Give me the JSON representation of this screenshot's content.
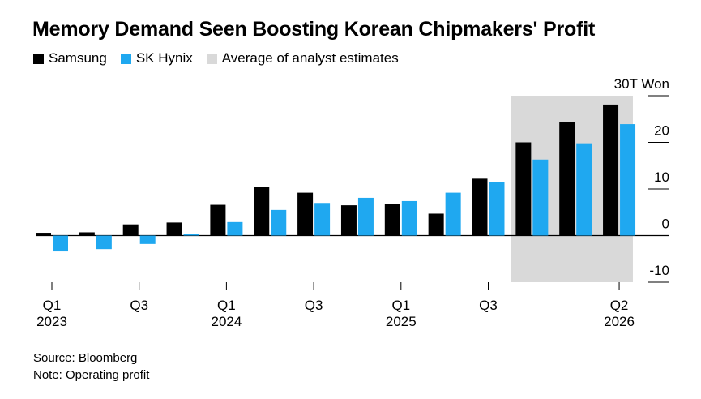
{
  "title": "Memory Demand Seen Boosting Korean Chipmakers' Profit",
  "legend": [
    {
      "label": "Samsung",
      "color": "#000000"
    },
    {
      "label": "SK Hynix",
      "color": "#1fa8f0"
    },
    {
      "label": "Average of analyst estimates",
      "color": "#d9d9d9"
    }
  ],
  "footer": {
    "source": "Source: Bloomberg",
    "note": "Note: Operating profit"
  },
  "chart_data": {
    "type": "bar",
    "title": "Memory Demand Seen Boosting Korean Chipmakers' Profit",
    "ylabel": "T Won",
    "ylim": [
      -10,
      30
    ],
    "yticks": [
      30,
      20,
      10,
      0,
      -10
    ],
    "ytick_labels": [
      "30T Won",
      "20",
      "10",
      "0",
      "-10"
    ],
    "categories": [
      "Q1 2023",
      "Q2 2023",
      "Q3 2023",
      "Q4 2023",
      "Q1 2024",
      "Q2 2024",
      "Q3 2024",
      "Q4 2024",
      "Q1 2025",
      "Q2 2025",
      "Q3 2025",
      "Q4 2025",
      "Q1 2026",
      "Q2 2026"
    ],
    "xtick_labels": [
      {
        "index": 0,
        "quarter": "Q1",
        "year": "2023"
      },
      {
        "index": 2,
        "quarter": "Q3",
        "year": ""
      },
      {
        "index": 4,
        "quarter": "Q1",
        "year": "2024"
      },
      {
        "index": 6,
        "quarter": "Q3",
        "year": ""
      },
      {
        "index": 8,
        "quarter": "Q1",
        "year": "2025"
      },
      {
        "index": 10,
        "quarter": "Q3",
        "year": ""
      },
      {
        "index": 13,
        "quarter": "Q2",
        "year": "2026"
      }
    ],
    "series": [
      {
        "name": "Samsung",
        "color": "#000000",
        "values": [
          0.6,
          0.7,
          2.4,
          2.8,
          6.6,
          10.4,
          9.2,
          6.5,
          6.7,
          4.7,
          12.2,
          20.0,
          24.3,
          28.1
        ]
      },
      {
        "name": "SK Hynix",
        "color": "#1fa8f0",
        "values": [
          -3.4,
          -2.9,
          -1.8,
          0.3,
          2.9,
          5.5,
          7.0,
          8.1,
          7.4,
          9.2,
          11.4,
          16.3,
          19.8,
          23.9
        ]
      }
    ],
    "estimate_range": {
      "from": "Q4 2025",
      "to": "Q2 2026",
      "label": "Average of analyst estimates"
    }
  }
}
